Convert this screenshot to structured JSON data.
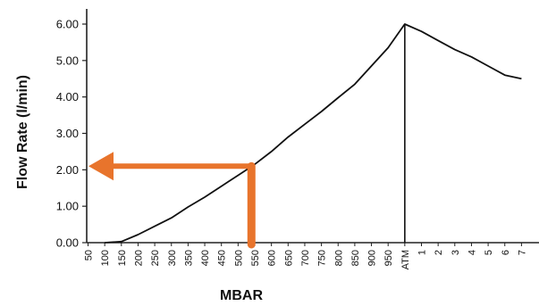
{
  "chart_data": {
    "type": "line",
    "xlabel": "MBAR",
    "ylabel": "Flow Rate (l/min)",
    "y_ticks": [
      "0.00",
      "1.00",
      "2.00",
      "3.00",
      "4.00",
      "5.00",
      "6.00"
    ],
    "ylim": [
      0,
      6.3
    ],
    "x_categories": [
      "50",
      "100",
      "150",
      "200",
      "250",
      "300",
      "350",
      "400",
      "450",
      "500",
      "550",
      "600",
      "650",
      "700",
      "750",
      "800",
      "850",
      "900",
      "950",
      "ATM",
      "1",
      "2",
      "3",
      "4",
      "5",
      "6",
      "7"
    ],
    "series": [
      {
        "values": [
          [
            "100",
            0.0
          ],
          [
            "150",
            0.03
          ],
          [
            "200",
            0.22
          ],
          [
            "250",
            0.45
          ],
          [
            "300",
            0.68
          ],
          [
            "350",
            0.98
          ],
          [
            "400",
            1.25
          ],
          [
            "450",
            1.55
          ],
          [
            "500",
            1.85
          ],
          [
            "550",
            2.15
          ],
          [
            "600",
            2.5
          ],
          [
            "650",
            2.9
          ],
          [
            "700",
            3.25
          ],
          [
            "750",
            3.6
          ],
          [
            "800",
            3.98
          ],
          [
            "850",
            4.35
          ],
          [
            "900",
            4.85
          ],
          [
            "950",
            5.35
          ],
          [
            "ATM",
            6.0
          ],
          [
            "1",
            5.8
          ],
          [
            "2",
            5.55
          ],
          [
            "3",
            5.3
          ],
          [
            "4",
            5.1
          ],
          [
            "5",
            4.85
          ],
          [
            "6",
            4.6
          ],
          [
            "7",
            4.5
          ]
        ]
      }
    ],
    "annotation": {
      "vertical_at_x": "ATM",
      "arrow_from_x": "540",
      "arrow_at_y": 2.1,
      "arrow_color": "#E8742C"
    },
    "grid": false
  }
}
